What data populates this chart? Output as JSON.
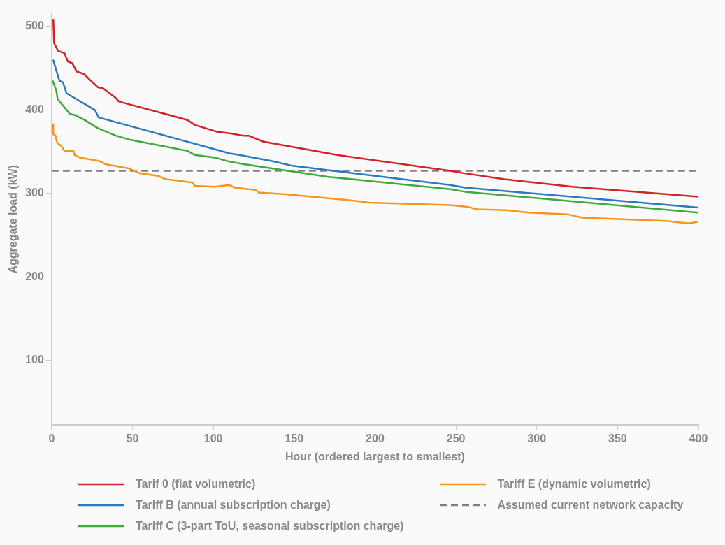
{
  "chart_data": {
    "type": "line",
    "xlabel": "Hour (ordered largest to smallest)",
    "ylabel": "Aggregate load (kW)",
    "xlim": [
      0,
      400
    ],
    "xticks": [
      0,
      50,
      100,
      150,
      200,
      250,
      300,
      350,
      400
    ],
    "ylim": [
      23,
      515
    ],
    "yticks": [
      100,
      200,
      300,
      400,
      500
    ],
    "grid": false,
    "legend": "bottom",
    "marker": "none",
    "line_style": "solid",
    "series": [
      {
        "name": "Tarif 0 (flat volumetric)",
        "color": "#d42027",
        "x": [
          1,
          1.5,
          3.9,
          7.9,
          10,
          12.7,
          15.5,
          20,
          23.7,
          28.7,
          31.7,
          39.3,
          41.6,
          84,
          88.6,
          102,
          110,
          119,
          122,
          131,
          176.6,
          246.5,
          255.6,
          280,
          322,
          399.8
        ],
        "values": [
          509,
          480,
          471,
          468,
          458,
          456,
          446,
          443,
          436,
          427,
          426,
          415,
          410,
          388,
          382,
          374,
          372,
          369,
          369,
          362,
          346,
          327,
          324,
          317,
          308,
          296
        ]
      },
      {
        "name": "Tariff B (annual subscription charge)",
        "color": "#2a79bf",
        "x": [
          0.9,
          4.8,
          7,
          9.2,
          26.7,
          29.1,
          100.8,
          110,
          116,
          135.7,
          149,
          246.5,
          255.6,
          399.8
        ],
        "values": [
          460,
          435,
          433,
          420,
          400,
          391,
          353,
          348,
          346,
          339,
          333,
          310,
          307,
          283
        ]
      },
      {
        "name": "Tariff C (3-part ToU, seasonal subscription charge)",
        "color": "#3daa3a",
        "x": [
          0.6,
          2.9,
          3.7,
          11.3,
          14.2,
          20.3,
          28.7,
          40,
          49,
          84,
          88.6,
          100.8,
          110,
          119,
          170.6,
          246.5,
          255.6,
          399.8
        ],
        "values": [
          435,
          423,
          413,
          395,
          394,
          388,
          378,
          369,
          364,
          351,
          346,
          343,
          338,
          335,
          320,
          305,
          302,
          277
        ]
      },
      {
        "name": "Tariff E (dynamic volumetric)",
        "color": "#f7941d",
        "x": [
          1,
          1,
          2.4,
          3.3,
          5.9,
          7.9,
          13.5,
          14.2,
          17.3,
          29.1,
          33.2,
          47.6,
          54.5,
          65.9,
          70.4,
          87.1,
          88.6,
          100.8,
          110,
          113,
          126.6,
          128,
          144.7,
          182.8,
          196.5,
          246.5,
          257,
          263,
          281,
          295,
          319,
          328,
          352.6,
          380,
          394,
          399.8
        ],
        "values": [
          383,
          371,
          369,
          361,
          357,
          351,
          351,
          346,
          343,
          339,
          335,
          330,
          324,
          321,
          317,
          313,
          309,
          308,
          310,
          307,
          304,
          301,
          299,
          292,
          289,
          286,
          284,
          281,
          280,
          277,
          275,
          271,
          269,
          267,
          264,
          266
        ]
      }
    ],
    "ref_lines": [
      {
        "axis": "y",
        "value": 327,
        "label": "Assumed current network capacity",
        "color": "#808080",
        "line_style": "dashed"
      }
    ]
  }
}
